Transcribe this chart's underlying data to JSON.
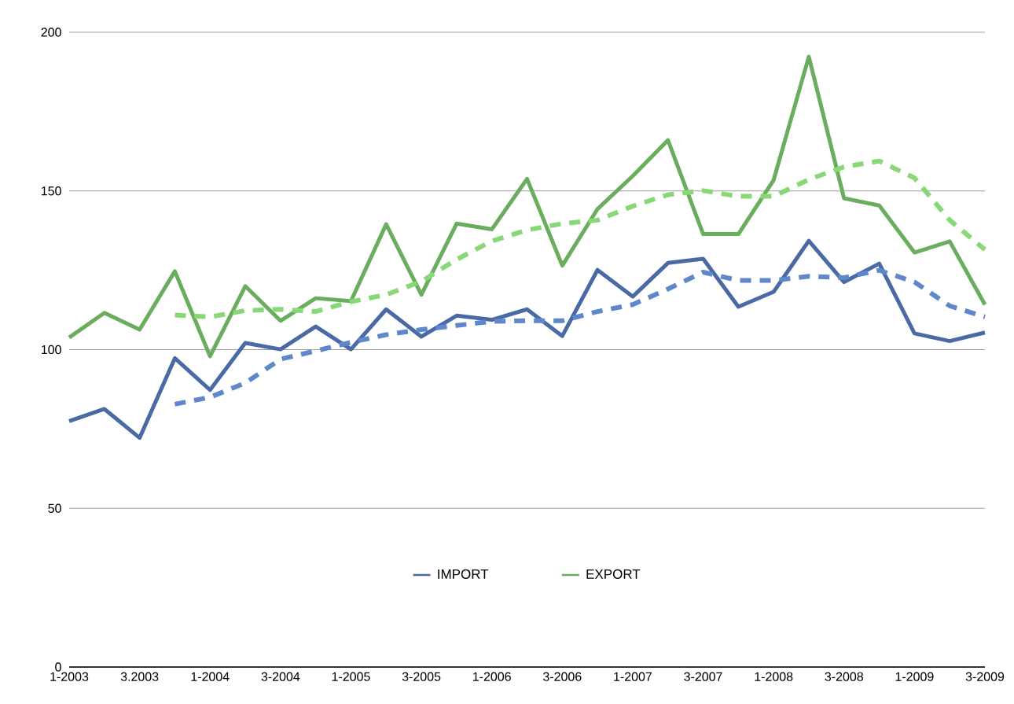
{
  "chart_data": {
    "type": "line",
    "categories": [
      "1-2003",
      null,
      "3.2003",
      null,
      "1-2004",
      null,
      "3-2004",
      null,
      "1-2005",
      null,
      "3-2005",
      null,
      "1-2006",
      null,
      "3-2006",
      null,
      "1-2007",
      null,
      "3-2007",
      null,
      "1-2008",
      null,
      "3-2008",
      null,
      "1-2009",
      null,
      "3-2009"
    ],
    "series": [
      {
        "name": "IMPORT",
        "color": "#4a6aa5",
        "line_style": "solid",
        "values": [
          77.5,
          81.3,
          72.2,
          97.3,
          87.3,
          102.1,
          100.1,
          107.3,
          100.1,
          112.7,
          104.1,
          110.7,
          109.4,
          112.7,
          104.3,
          125.1,
          116.7,
          127.3,
          128.6,
          113.5,
          118.2,
          134.3,
          121.3,
          127.1,
          105.1,
          102.7,
          105.4
        ]
      },
      {
        "name": "EXPORT",
        "color": "#6aad5e",
        "line_style": "solid",
        "values": [
          103.8,
          111.6,
          106.3,
          124.7,
          97.9,
          120.0,
          109.1,
          116.2,
          115.3,
          139.5,
          117.3,
          139.7,
          137.9,
          153.8,
          126.5,
          144.3,
          154.7,
          166.0,
          136.4,
          136.4,
          153.4,
          192.3,
          147.7,
          145.4,
          130.6,
          134.1,
          114.2
        ]
      },
      {
        "color": "#5f87cc",
        "line_style": "dashed",
        "values": [
          null,
          null,
          null,
          82.8,
          85.0,
          89.5,
          97.0,
          99.6,
          102.3,
          104.7,
          106.3,
          107.6,
          108.9,
          109.1,
          109.1,
          112.0,
          114.2,
          119.1,
          124.4,
          121.8,
          121.8,
          123.1,
          122.7,
          125.0,
          121.3,
          113.8,
          110.3
        ]
      },
      {
        "color": "#88d878",
        "line_style": "dashed",
        "values": [
          null,
          null,
          null,
          110.9,
          110.3,
          112.3,
          112.7,
          112.0,
          115.1,
          117.3,
          121.5,
          128.4,
          134.2,
          137.7,
          139.7,
          140.8,
          145.2,
          148.8,
          150.1,
          148.3,
          148.3,
          153.6,
          157.6,
          159.4,
          154.1,
          140.8,
          131.5
        ]
      }
    ],
    "ylim": [
      0,
      200
    ],
    "yticks": [
      0,
      50,
      100,
      150,
      200
    ],
    "grid": "y",
    "legend": "bottom",
    "marker": "none"
  }
}
